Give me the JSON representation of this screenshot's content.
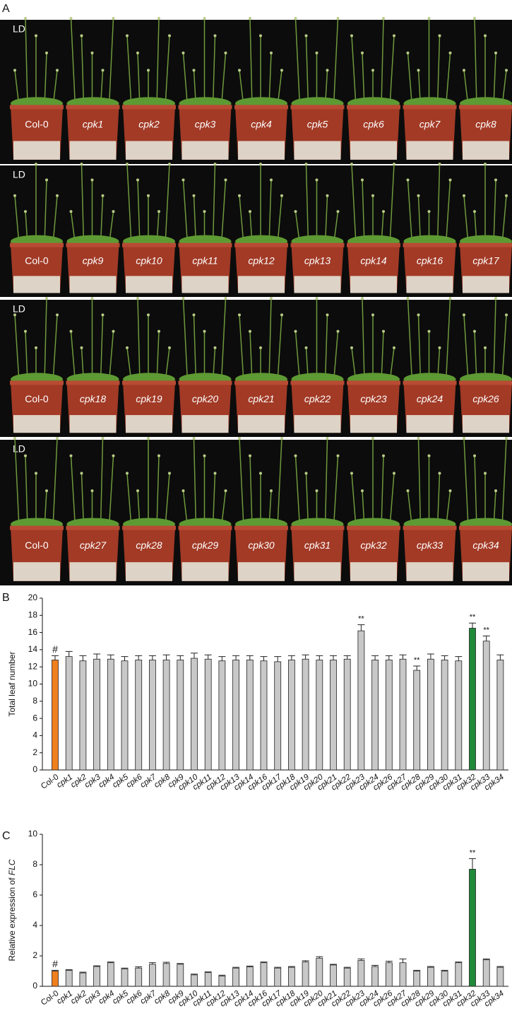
{
  "panel_labels": [
    "A",
    "B",
    "C"
  ],
  "photos": [
    {
      "condition": "LD",
      "labels": [
        "Col-0",
        "cpk1",
        "cpk2",
        "cpk3",
        "cpk4",
        "cpk5",
        "cpk6",
        "cpk7",
        "cpk8"
      ]
    },
    {
      "condition": "LD",
      "labels": [
        "Col-0",
        "cpk9",
        "cpk10",
        "cpk11",
        "cpk12",
        "cpk13",
        "cpk14",
        "cpk16",
        "cpk17"
      ]
    },
    {
      "condition": "LD",
      "labels": [
        "Col-0",
        "cpk18",
        "cpk19",
        "cpk20",
        "cpk21",
        "cpk22",
        "cpk23",
        "cpk24",
        "cpk26"
      ]
    },
    {
      "condition": "LD",
      "labels": [
        "Col-0",
        "cpk27",
        "cpk28",
        "cpk29",
        "cpk30",
        "cpk31",
        "cpk32",
        "cpk33",
        "cpk34"
      ]
    }
  ],
  "chart_data": [
    {
      "type": "bar",
      "y_label": {
        "text": "Total leaf number"
      },
      "categories": [
        "Col-0",
        "cpk1",
        "cpk2",
        "cpk3",
        "cpk4",
        "cpk5",
        "cpk6",
        "cpk7",
        "cpk8",
        "cpk9",
        "cpk10",
        "cpk11",
        "cpk12",
        "cpk13",
        "cpk14",
        "cpk16",
        "cpk17",
        "cpk18",
        "cpk19",
        "cpk20",
        "cpk21",
        "cpk22",
        "cpk23",
        "cpk24",
        "cpk26",
        "cpk27",
        "cpk28",
        "cpk29",
        "cpk30",
        "cpk31",
        "cpk32",
        "cpk33",
        "cpk34"
      ],
      "values": [
        12.8,
        13.2,
        12.7,
        12.9,
        12.9,
        12.7,
        12.8,
        12.8,
        12.8,
        12.8,
        13.0,
        12.9,
        12.7,
        12.8,
        12.8,
        12.7,
        12.6,
        12.8,
        12.9,
        12.8,
        12.8,
        12.9,
        16.2,
        12.8,
        12.8,
        12.9,
        11.6,
        12.9,
        12.8,
        12.7,
        16.5,
        15.0,
        12.8
      ],
      "errors": [
        0.5,
        0.6,
        0.6,
        0.6,
        0.5,
        0.5,
        0.5,
        0.5,
        0.6,
        0.5,
        0.6,
        0.5,
        0.5,
        0.5,
        0.5,
        0.5,
        0.6,
        0.5,
        0.5,
        0.5,
        0.5,
        0.4,
        0.7,
        0.5,
        0.5,
        0.5,
        0.5,
        0.6,
        0.5,
        0.5,
        0.6,
        0.6,
        0.6
      ],
      "colors": [
        "#f07f1e",
        "#c8c8c8",
        "#c8c8c8",
        "#c8c8c8",
        "#c8c8c8",
        "#c8c8c8",
        "#c8c8c8",
        "#c8c8c8",
        "#c8c8c8",
        "#c8c8c8",
        "#c8c8c8",
        "#c8c8c8",
        "#c8c8c8",
        "#c8c8c8",
        "#c8c8c8",
        "#c8c8c8",
        "#c8c8c8",
        "#c8c8c8",
        "#c8c8c8",
        "#c8c8c8",
        "#c8c8c8",
        "#c8c8c8",
        "#c8c8c8",
        "#c8c8c8",
        "#c8c8c8",
        "#c8c8c8",
        "#c8c8c8",
        "#c8c8c8",
        "#c8c8c8",
        "#c8c8c8",
        "#1f8a3a",
        "#c8c8c8",
        "#c8c8c8"
      ],
      "markers": [
        "#",
        null,
        null,
        null,
        null,
        null,
        null,
        null,
        null,
        null,
        null,
        null,
        null,
        null,
        null,
        null,
        null,
        null,
        null,
        null,
        null,
        null,
        "**",
        null,
        null,
        null,
        "**",
        null,
        null,
        null,
        "**",
        "**",
        null
      ],
      "ylim": [
        0,
        20
      ],
      "yticks": [
        0,
        2,
        4,
        6,
        8,
        10,
        12,
        14,
        16,
        18,
        20
      ]
    },
    {
      "type": "bar",
      "y_label": {
        "text": "Relative expression of",
        "gene": "FLC"
      },
      "categories": [
        "Col-0",
        "cpk1",
        "cpk2",
        "cpk3",
        "cpk4",
        "cpk5",
        "cpk6",
        "cpk7",
        "cpk8",
        "cpk9",
        "cpk10",
        "cpk11",
        "cpk12",
        "cpk13",
        "cpk14",
        "cpk16",
        "cpk17",
        "cpk18",
        "cpk19",
        "cpk20",
        "cpk21",
        "cpk22",
        "cpk23",
        "cpk24",
        "cpk26",
        "cpk27",
        "cpk28",
        "cpk29",
        "cpk30",
        "cpk31",
        "cpk32",
        "cpk33",
        "cpk34"
      ],
      "values": [
        1.0,
        1.05,
        0.88,
        1.3,
        1.55,
        1.15,
        1.2,
        1.45,
        1.5,
        1.45,
        0.75,
        0.9,
        0.68,
        1.2,
        1.28,
        1.55,
        1.2,
        1.25,
        1.6,
        1.85,
        1.4,
        1.2,
        1.7,
        1.3,
        1.55,
        1.55,
        1.0,
        1.25,
        1.0,
        1.55,
        7.7,
        1.75,
        1.25
      ],
      "errors": [
        0.05,
        0.05,
        0.05,
        0.05,
        0.05,
        0.05,
        0.08,
        0.1,
        0.08,
        0.05,
        0.05,
        0.05,
        0.05,
        0.05,
        0.05,
        0.05,
        0.05,
        0.05,
        0.08,
        0.1,
        0.05,
        0.05,
        0.1,
        0.08,
        0.1,
        0.25,
        0.05,
        0.05,
        0.05,
        0.05,
        0.7,
        0.05,
        0.05
      ],
      "colors": [
        "#f07f1e",
        "#c8c8c8",
        "#c8c8c8",
        "#c8c8c8",
        "#c8c8c8",
        "#c8c8c8",
        "#c8c8c8",
        "#c8c8c8",
        "#c8c8c8",
        "#c8c8c8",
        "#c8c8c8",
        "#c8c8c8",
        "#c8c8c8",
        "#c8c8c8",
        "#c8c8c8",
        "#c8c8c8",
        "#c8c8c8",
        "#c8c8c8",
        "#c8c8c8",
        "#c8c8c8",
        "#c8c8c8",
        "#c8c8c8",
        "#c8c8c8",
        "#c8c8c8",
        "#c8c8c8",
        "#c8c8c8",
        "#c8c8c8",
        "#c8c8c8",
        "#c8c8c8",
        "#c8c8c8",
        "#1f8a3a",
        "#c8c8c8",
        "#c8c8c8"
      ],
      "markers": [
        "#",
        null,
        null,
        null,
        null,
        null,
        null,
        null,
        null,
        null,
        null,
        null,
        null,
        null,
        null,
        null,
        null,
        null,
        null,
        null,
        null,
        null,
        null,
        null,
        null,
        null,
        null,
        null,
        null,
        null,
        "**",
        null,
        null
      ],
      "ylim": [
        0,
        10
      ],
      "yticks": [
        0,
        2,
        4,
        6,
        8,
        10
      ]
    }
  ]
}
